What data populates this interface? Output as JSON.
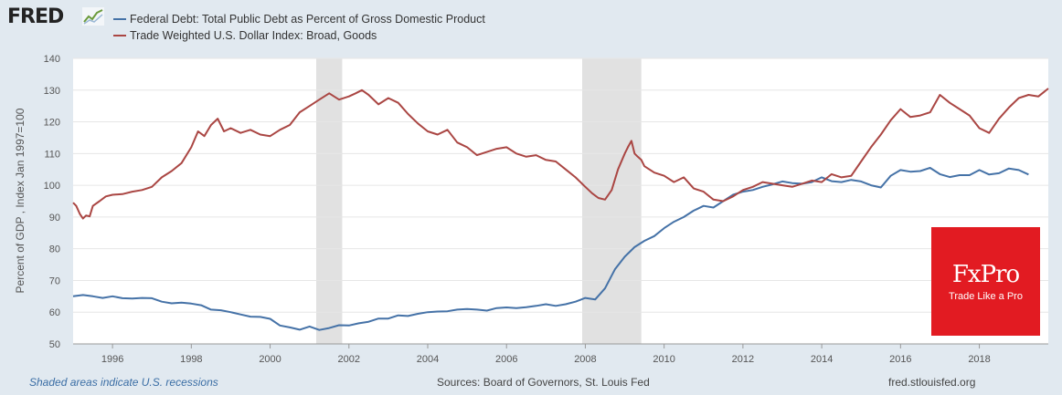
{
  "header": {
    "logo_text": "FRED",
    "logo_mark": "trend-chart-icon"
  },
  "legend": [
    {
      "label": "Federal Debt: Total Public Debt as Percent of Gross Domestic Product",
      "color": "#4572a7"
    },
    {
      "label": "Trade Weighted U.S. Dollar Index: Broad, Goods",
      "color": "#aa4643"
    }
  ],
  "footer": {
    "recession_note": "Shaded areas indicate U.S. recessions",
    "sources": "Sources: Board of Governors, St. Louis Fed",
    "site": "fred.stlouisfed.org"
  },
  "watermark": {
    "brand": "FxPro",
    "tagline": "Trade Like a Pro"
  },
  "chart_data": {
    "type": "line",
    "ylabel": "Percent of GDP , Index Jan 1997=100",
    "xlim": [
      1995.0,
      2019.75
    ],
    "ylim": [
      50,
      140
    ],
    "y_ticks": [
      50,
      60,
      70,
      80,
      90,
      100,
      110,
      120,
      130,
      140
    ],
    "x_ticks": [
      "1996",
      "1998",
      "2000",
      "2002",
      "2004",
      "2006",
      "2008",
      "2010",
      "2012",
      "2014",
      "2016",
      "2018"
    ],
    "x_tick_values": [
      1996,
      1998,
      2000,
      2002,
      2004,
      2006,
      2008,
      2010,
      2012,
      2014,
      2016,
      2018
    ],
    "grid": true,
    "recessions": [
      [
        2001.17,
        2001.83
      ],
      [
        2007.92,
        2009.42
      ]
    ],
    "series": [
      {
        "name": "Federal Debt: Total Public Debt as Percent of Gross Domestic Product",
        "color": "#4572a7",
        "x": [
          1995.0,
          1995.25,
          1995.5,
          1995.75,
          1996.0,
          1996.25,
          1996.5,
          1996.75,
          1997.0,
          1997.25,
          1997.5,
          1997.75,
          1998.0,
          1998.25,
          1998.5,
          1998.75,
          1999.0,
          1999.25,
          1999.5,
          1999.75,
          2000.0,
          2000.25,
          2000.5,
          2000.75,
          2001.0,
          2001.25,
          2001.5,
          2001.75,
          2002.0,
          2002.25,
          2002.5,
          2002.75,
          2003.0,
          2003.25,
          2003.5,
          2003.75,
          2004.0,
          2004.25,
          2004.5,
          2004.75,
          2005.0,
          2005.25,
          2005.5,
          2005.75,
          2006.0,
          2006.25,
          2006.5,
          2006.75,
          2007.0,
          2007.25,
          2007.5,
          2007.75,
          2008.0,
          2008.25,
          2008.5,
          2008.75,
          2009.0,
          2009.25,
          2009.5,
          2009.75,
          2010.0,
          2010.25,
          2010.5,
          2010.75,
          2011.0,
          2011.25,
          2011.5,
          2011.75,
          2012.0,
          2012.25,
          2012.5,
          2012.75,
          2013.0,
          2013.25,
          2013.5,
          2013.75,
          2014.0,
          2014.25,
          2014.5,
          2014.75,
          2015.0,
          2015.25,
          2015.5,
          2015.75,
          2016.0,
          2016.25,
          2016.5,
          2016.75,
          2017.0,
          2017.25,
          2017.5,
          2017.75,
          2018.0,
          2018.25,
          2018.5,
          2018.75,
          2019.0,
          2019.25
        ],
        "values": [
          65.0,
          65.4,
          65.0,
          64.5,
          65.0,
          64.4,
          64.3,
          64.5,
          64.4,
          63.3,
          62.8,
          63.0,
          62.7,
          62.2,
          60.8,
          60.6,
          60.0,
          59.3,
          58.6,
          58.5,
          57.9,
          55.8,
          55.2,
          54.5,
          55.5,
          54.4,
          55.0,
          55.9,
          55.8,
          56.5,
          57.0,
          58.0,
          58.0,
          59.0,
          58.8,
          59.5,
          60.0,
          60.2,
          60.3,
          60.8,
          61.0,
          60.8,
          60.5,
          61.3,
          61.5,
          61.3,
          61.6,
          62.0,
          62.5,
          62.0,
          62.5,
          63.3,
          64.5,
          64.0,
          67.5,
          73.5,
          77.5,
          80.5,
          82.5,
          84.0,
          86.5,
          88.5,
          90.0,
          92.0,
          93.5,
          93.0,
          95.0,
          97.0,
          98.0,
          98.5,
          99.5,
          100.3,
          101.2,
          100.7,
          100.5,
          101.0,
          102.5,
          101.3,
          101.0,
          101.7,
          101.2,
          100.0,
          99.3,
          103.0,
          104.8,
          104.3,
          104.5,
          105.5,
          103.5,
          102.6,
          103.2,
          103.2,
          104.8,
          103.4,
          103.8,
          105.3,
          104.8,
          103.4
        ]
      },
      {
        "name": "Trade Weighted U.S. Dollar Index: Broad, Goods",
        "color": "#aa4643",
        "x": [
          1995.0,
          1995.08,
          1995.17,
          1995.25,
          1995.33,
          1995.42,
          1995.5,
          1995.67,
          1995.83,
          1996.0,
          1996.25,
          1996.5,
          1996.75,
          1997.0,
          1997.25,
          1997.5,
          1997.75,
          1998.0,
          1998.17,
          1998.33,
          1998.5,
          1998.67,
          1998.83,
          1999.0,
          1999.25,
          1999.5,
          1999.75,
          2000.0,
          2000.25,
          2000.5,
          2000.75,
          2001.0,
          2001.25,
          2001.5,
          2001.75,
          2002.0,
          2002.17,
          2002.33,
          2002.5,
          2002.75,
          2003.0,
          2003.25,
          2003.5,
          2003.75,
          2004.0,
          2004.25,
          2004.5,
          2004.75,
          2005.0,
          2005.25,
          2005.5,
          2005.75,
          2006.0,
          2006.25,
          2006.5,
          2006.75,
          2007.0,
          2007.25,
          2007.5,
          2007.75,
          2008.0,
          2008.17,
          2008.33,
          2008.5,
          2008.67,
          2008.83,
          2009.0,
          2009.08,
          2009.17,
          2009.25,
          2009.33,
          2009.42,
          2009.5,
          2009.75,
          2010.0,
          2010.25,
          2010.5,
          2010.75,
          2011.0,
          2011.25,
          2011.5,
          2011.75,
          2012.0,
          2012.25,
          2012.5,
          2012.75,
          2013.0,
          2013.25,
          2013.5,
          2013.75,
          2014.0,
          2014.25,
          2014.5,
          2014.75,
          2015.0,
          2015.25,
          2015.5,
          2015.75,
          2016.0,
          2016.25,
          2016.5,
          2016.75,
          2017.0,
          2017.25,
          2017.5,
          2017.75,
          2018.0,
          2018.25,
          2018.5,
          2018.75,
          2019.0,
          2019.25,
          2019.5,
          2019.75
        ],
        "values": [
          94.5,
          93.5,
          91.0,
          89.5,
          90.5,
          90.2,
          93.5,
          95.0,
          96.5,
          97.0,
          97.2,
          98.0,
          98.5,
          99.5,
          102.5,
          104.5,
          107.0,
          112.0,
          117.0,
          115.5,
          119.0,
          121.0,
          117.0,
          118.0,
          116.5,
          117.5,
          116.0,
          115.5,
          117.5,
          119.0,
          123.0,
          125.0,
          127.0,
          129.0,
          127.0,
          128.0,
          129.0,
          130.0,
          128.5,
          125.5,
          127.5,
          126.0,
          122.5,
          119.5,
          117.0,
          116.0,
          117.5,
          113.5,
          112.0,
          109.5,
          110.5,
          111.5,
          112.0,
          110.0,
          109.0,
          109.5,
          108.0,
          107.5,
          105.0,
          102.5,
          99.5,
          97.5,
          96.0,
          95.5,
          98.5,
          105.0,
          110.0,
          112.0,
          114.0,
          110.0,
          109.0,
          108.0,
          106.0,
          104.0,
          103.0,
          101.0,
          102.5,
          99.0,
          98.0,
          95.5,
          95.0,
          96.5,
          98.5,
          99.5,
          101.0,
          100.5,
          100.0,
          99.5,
          100.5,
          101.5,
          101.0,
          103.5,
          102.5,
          103.0,
          107.5,
          112.0,
          116.0,
          120.5,
          124.0,
          121.5,
          122.0,
          123.0,
          128.5,
          126.0,
          124.0,
          122.0,
          118.0,
          116.5,
          121.0,
          124.5,
          127.5,
          128.5,
          128.0,
          130.5
        ]
      }
    ]
  }
}
